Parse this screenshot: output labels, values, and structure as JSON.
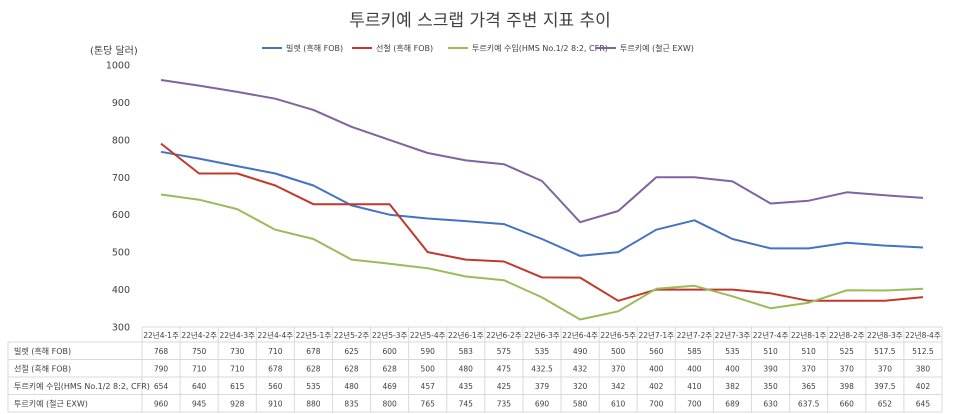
{
  "chart_data": {
    "type": "line",
    "title": "투르키예 스크랩 가격 주변 지표 추이",
    "ylabel": "(톤당 달러)",
    "ylim": [
      300,
      1000
    ],
    "yticks": [
      300,
      400,
      500,
      600,
      700,
      800,
      900,
      1000
    ],
    "grid": false,
    "legend_position": "top",
    "categories": [
      "22년4-1주",
      "22년4-2주",
      "22년4-3주",
      "22년4-4주",
      "22년5-1주",
      "22년5-2주",
      "22년5-3주",
      "22년5-4주",
      "22년6-1주",
      "22년6-2주",
      "22년6-3주",
      "22년6-4주",
      "22년6-5주",
      "22년7-1주",
      "22년7-2주",
      "22년7-3주",
      "22년7-4주",
      "22년8-1주",
      "22년8-2주",
      "22년8-3주",
      "22년8-4주"
    ],
    "series": [
      {
        "name": "빌렛 (흑해 FOB)",
        "color": "#4472C4",
        "values": [
          768,
          750,
          730,
          710,
          678,
          625,
          600,
          590,
          583,
          575,
          535,
          490,
          500,
          560,
          585,
          535,
          510,
          510,
          525,
          517.5,
          512.5
        ],
        "labels": [
          "768",
          "750",
          "730",
          "710",
          "678",
          "625",
          "600",
          "590",
          "583",
          "575",
          "535",
          "490",
          "500",
          "560",
          "585",
          "535",
          "510",
          "510",
          "525",
          "517.5",
          "512.5"
        ]
      },
      {
        "name": "선철 (흑해 FOB)",
        "color": "#C0392B",
        "values": [
          790,
          710,
          710,
          678,
          628,
          628,
          628,
          500,
          480,
          475,
          432.5,
          432,
          370,
          400,
          400,
          400,
          390,
          370,
          370,
          370,
          380
        ],
        "labels": [
          "790",
          "710",
          "710",
          "678",
          "628",
          "628",
          "628",
          "500",
          "480",
          "475",
          "432.5",
          "432",
          "370",
          "400",
          "400",
          "400",
          "390",
          "370",
          "370",
          "370",
          "380"
        ]
      },
      {
        "name": "투르키예 수입(HMS No.1/2 8:2, CFR)",
        "color": "#9BBB59",
        "values": [
          654,
          640,
          615,
          560,
          535,
          480,
          469,
          457,
          435,
          425,
          379,
          320,
          342,
          402,
          410,
          382,
          350,
          365,
          398,
          397.5,
          402
        ],
        "labels": [
          "654",
          "640",
          "615",
          "560",
          "535",
          "480",
          "469",
          "457",
          "435",
          "425",
          "379",
          "320",
          "342",
          "402",
          "410",
          "382",
          "350",
          "365",
          "398",
          "397.5",
          "402"
        ]
      },
      {
        "name": "투르키예 (철근 EXW)",
        "color": "#8064A2",
        "values": [
          960,
          945,
          928,
          910,
          880,
          835,
          800,
          765,
          745,
          735,
          690,
          580,
          610,
          700,
          700,
          689,
          630,
          637.5,
          660,
          652,
          645
        ],
        "labels": [
          "960",
          "945",
          "928",
          "910",
          "880",
          "835",
          "800",
          "765",
          "745",
          "735",
          "690",
          "580",
          "610",
          "700",
          "700",
          "689",
          "630",
          "637.5",
          "660",
          "652",
          "645"
        ]
      }
    ]
  }
}
